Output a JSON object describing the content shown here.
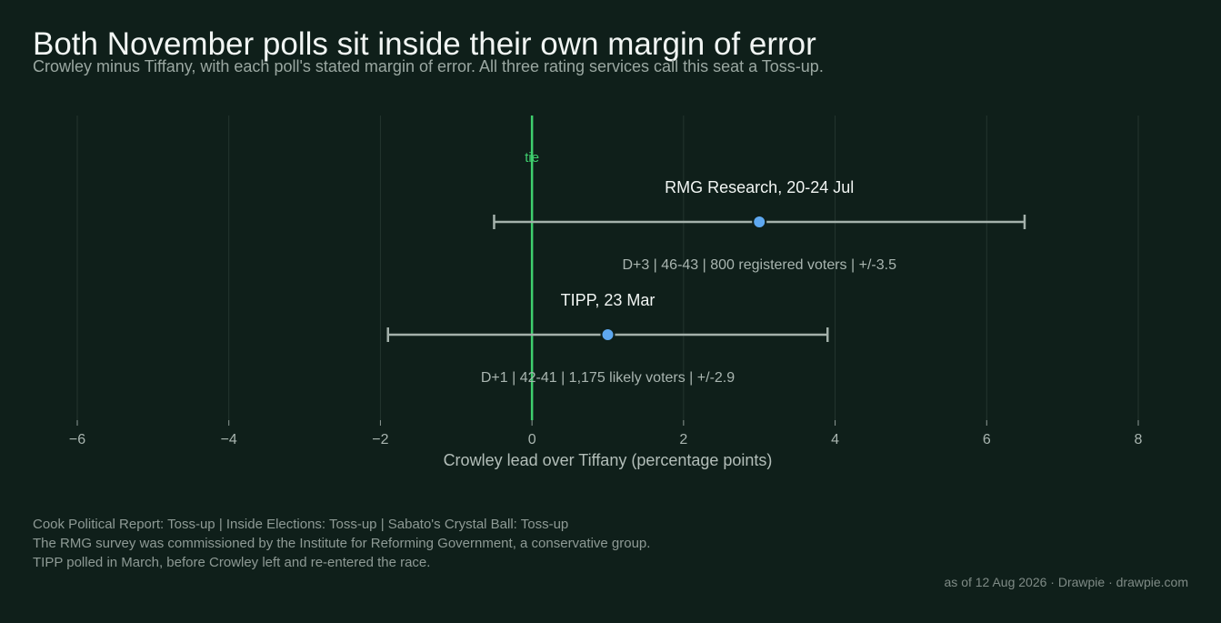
{
  "title": "Both November polls sit inside their own margin of error",
  "subtitle": "Crowley minus Tiffany, with each poll's stated margin of error. All three rating services call this seat a Toss-up.",
  "chart_data": {
    "type": "scatter",
    "variant": "dot-with-error-bars",
    "xlabel": "Crowley lead over Tiffany (percentage points)",
    "xlim": [
      -6,
      8
    ],
    "xticks": [
      -6,
      -4,
      -2,
      0,
      2,
      4,
      6,
      8
    ],
    "xtick_labels": [
      "−6",
      "−4",
      "−2",
      "0",
      "2",
      "4",
      "6",
      "8"
    ],
    "grid": true,
    "reference_line": {
      "x": 0,
      "label": "tie",
      "color": "#3fcf6e"
    },
    "point_color": "#5ea8f0",
    "errorbar_color": "#a4b1ab",
    "polls": [
      {
        "label": "RMG Research, 20-24 Jul",
        "margin": 3,
        "error_low": -0.5,
        "error_high": 6.5,
        "detail": "D+3 | 46-43 | 800 registered voters | +/-3.5"
      },
      {
        "label": "TIPP, 23 Mar",
        "margin": 1,
        "error_low": -1.9,
        "error_high": 3.9,
        "detail": "D+1 | 42-41 | 1,175 likely voters | +/-2.9"
      }
    ]
  },
  "footnotes": [
    "Cook Political Report: Toss-up | Inside Elections: Toss-up | Sabato's Crystal Ball: Toss-up",
    "The RMG survey was commissioned by the Institute for Reforming Government, a conservative group.",
    "TIPP polled in March, before Crowley left and re-entered the race."
  ],
  "credit": "as of 12 Aug 2026  ·  Drawpie · drawpie.com"
}
